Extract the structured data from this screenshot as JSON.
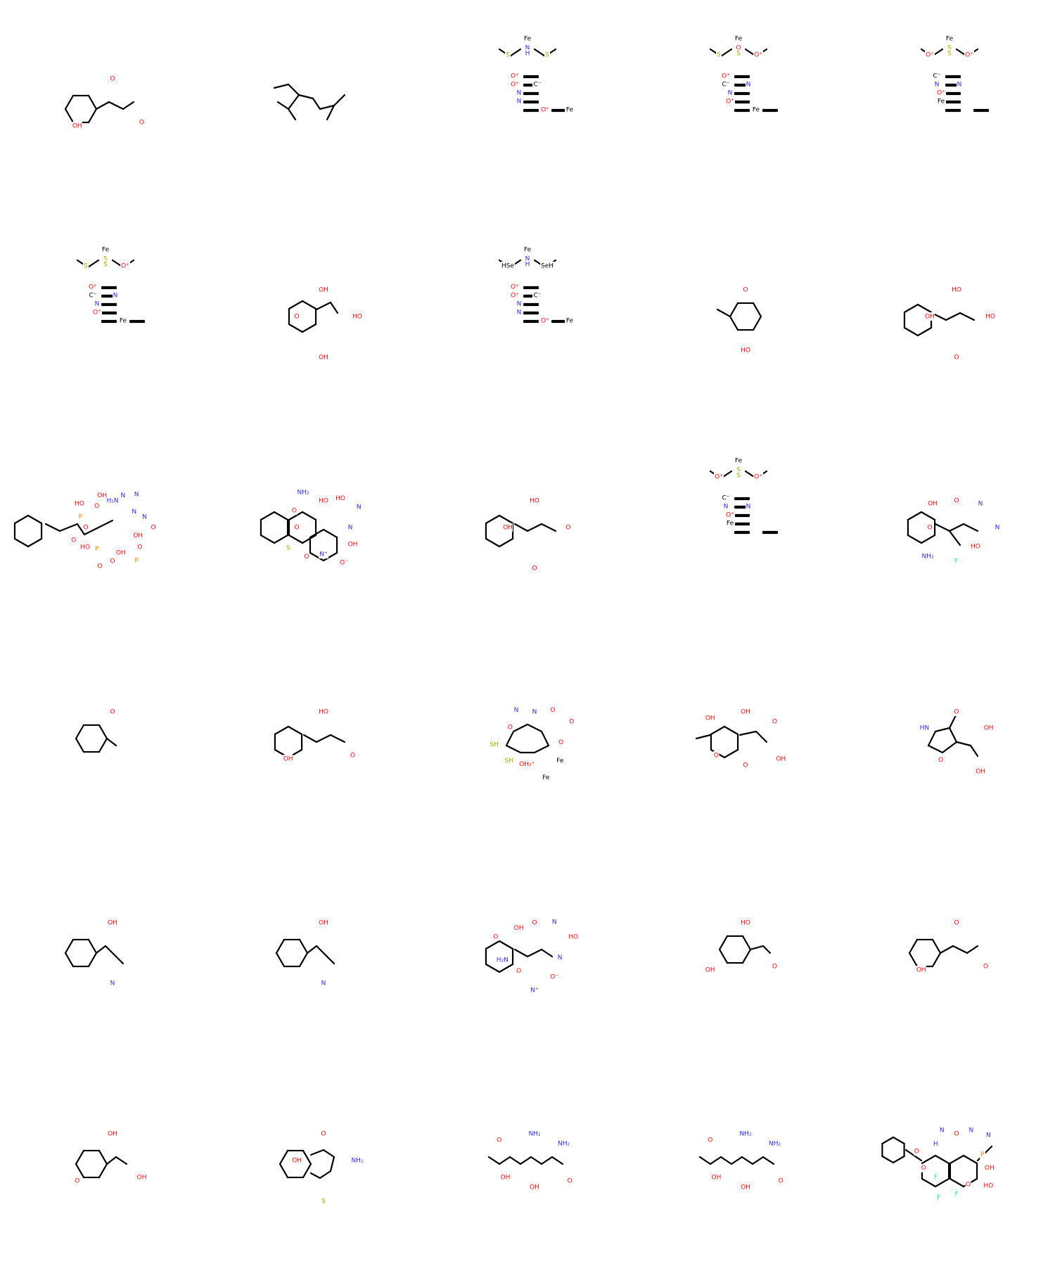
{
  "colors": {
    "carbon": "#000000",
    "oxygen": "#ff0d0d",
    "nitrogen": "#2a2afa",
    "sulfur": "#b2a200",
    "phosphorus": "#ff8000",
    "fluorine": "#21d4d4",
    "iron": "#000000",
    "background": "#ffffff"
  },
  "molecules": [
    {
      "name": "phenylglyoxylic-acid",
      "labels": [
        {
          "t": "O",
          "c": "O"
        },
        {
          "t": "O",
          "c": "O"
        },
        {
          "t": "OH",
          "c": "O"
        }
      ]
    },
    {
      "name": "branched-alkane",
      "labels": []
    },
    {
      "name": "fe-hydrogenase-cluster-nh",
      "labels": [
        {
          "t": "Fe",
          "c": "Fe"
        },
        {
          "t": "N",
          "c": "N"
        },
        {
          "t": "H",
          "c": "N"
        },
        {
          "t": "S",
          "c": "S"
        },
        {
          "t": "S",
          "c": "S"
        },
        {
          "t": "O⁺",
          "c": "O"
        },
        {
          "t": "O⁺",
          "c": "O"
        },
        {
          "t": "C⁻",
          "c": "C"
        },
        {
          "t": "N",
          "c": "N"
        },
        {
          "t": "N",
          "c": "N"
        },
        {
          "t": "O⁺",
          "c": "O"
        },
        {
          "t": "Fe",
          "c": "Fe"
        }
      ]
    },
    {
      "name": "fe-hydrogenase-cluster-o",
      "labels": [
        {
          "t": "Fe",
          "c": "Fe"
        },
        {
          "t": "O",
          "c": "O"
        },
        {
          "t": "S",
          "c": "S"
        },
        {
          "t": "S",
          "c": "S"
        },
        {
          "t": "O⁺",
          "c": "O"
        },
        {
          "t": "O⁺",
          "c": "O"
        },
        {
          "t": "C⁻",
          "c": "C"
        },
        {
          "t": "N",
          "c": "N"
        },
        {
          "t": "N",
          "c": "N"
        },
        {
          "t": "O⁺",
          "c": "O"
        },
        {
          "t": "Fe",
          "c": "Fe"
        }
      ]
    },
    {
      "name": "fe-hydrogenase-cluster-c",
      "labels": [
        {
          "t": "Fe",
          "c": "Fe"
        },
        {
          "t": "S",
          "c": "S"
        },
        {
          "t": "S",
          "c": "S"
        },
        {
          "t": "O⁺",
          "c": "O"
        },
        {
          "t": "O⁺",
          "c": "O"
        },
        {
          "t": "C⁻",
          "c": "C"
        },
        {
          "t": "N",
          "c": "N"
        },
        {
          "t": "N",
          "c": "N"
        },
        {
          "t": "O⁺",
          "c": "O"
        },
        {
          "t": "Fe",
          "c": "Fe"
        }
      ]
    },
    {
      "name": "fe-hydrogenase-cluster-s",
      "labels": [
        {
          "t": "Fe",
          "c": "Fe"
        },
        {
          "t": "S",
          "c": "S"
        },
        {
          "t": "S",
          "c": "S"
        },
        {
          "t": "S",
          "c": "S"
        },
        {
          "t": "O⁺",
          "c": "O"
        },
        {
          "t": "O⁺",
          "c": "O"
        },
        {
          "t": "C⁻",
          "c": "C"
        },
        {
          "t": "N",
          "c": "N"
        },
        {
          "t": "N",
          "c": "N"
        },
        {
          "t": "O⁺",
          "c": "O"
        },
        {
          "t": "Fe",
          "c": "Fe"
        }
      ]
    },
    {
      "name": "trihydroxyacetophenone",
      "labels": [
        {
          "t": "OH",
          "c": "O"
        },
        {
          "t": "HO",
          "c": "O"
        },
        {
          "t": "OH",
          "c": "O"
        },
        {
          "t": "O",
          "c": "O"
        }
      ]
    },
    {
      "name": "fe-hydrogenase-cluster-se",
      "labels": [
        {
          "t": "Fe",
          "c": "Fe"
        },
        {
          "t": "N",
          "c": "N"
        },
        {
          "t": "H",
          "c": "N"
        },
        {
          "t": "HSe",
          "c": "C"
        },
        {
          "t": "SeH",
          "c": "C"
        },
        {
          "t": "O⁺",
          "c": "O"
        },
        {
          "t": "O⁺",
          "c": "O"
        },
        {
          "t": "C⁻",
          "c": "C"
        },
        {
          "t": "N",
          "c": "N"
        },
        {
          "t": "N",
          "c": "N"
        },
        {
          "t": "O⁺",
          "c": "O"
        },
        {
          "t": "Fe",
          "c": "Fe"
        }
      ]
    },
    {
      "name": "benzoic-acid",
      "labels": [
        {
          "t": "O",
          "c": "O"
        },
        {
          "t": "HO",
          "c": "O"
        }
      ]
    },
    {
      "name": "caffeic-acid",
      "labels": [
        {
          "t": "HO",
          "c": "O"
        },
        {
          "t": "HO",
          "c": "O"
        },
        {
          "t": "O",
          "c": "O"
        },
        {
          "t": "OH",
          "c": "O"
        }
      ]
    },
    {
      "name": "deoxyadenosine-triphosphate",
      "labels": [
        {
          "t": "H₂N",
          "c": "N"
        },
        {
          "t": "N",
          "c": "N"
        },
        {
          "t": "N",
          "c": "N"
        },
        {
          "t": "N",
          "c": "N"
        },
        {
          "t": "N",
          "c": "N"
        },
        {
          "t": "O",
          "c": "O"
        },
        {
          "t": "OH",
          "c": "O"
        },
        {
          "t": "O",
          "c": "O"
        },
        {
          "t": "P",
          "c": "P"
        },
        {
          "t": "OH",
          "c": "O"
        },
        {
          "t": "O",
          "c": "O"
        },
        {
          "t": "O",
          "c": "O"
        },
        {
          "t": "P",
          "c": "P"
        },
        {
          "t": "HO",
          "c": "O"
        },
        {
          "t": "O",
          "c": "O"
        },
        {
          "t": "O",
          "c": "O"
        },
        {
          "t": "P",
          "c": "P"
        },
        {
          "t": "HO",
          "c": "O"
        },
        {
          "t": "O",
          "c": "O"
        },
        {
          "t": "OH",
          "c": "O"
        }
      ]
    },
    {
      "name": "nitro-benzoquinoxaline-sulfonamide",
      "labels": [
        {
          "t": "HO",
          "c": "O"
        },
        {
          "t": "HO",
          "c": "O"
        },
        {
          "t": "N",
          "c": "N"
        },
        {
          "t": "N",
          "c": "N"
        },
        {
          "t": "OH",
          "c": "O"
        },
        {
          "t": "O⁻",
          "c": "O"
        },
        {
          "t": "N⁺",
          "c": "N"
        },
        {
          "t": "O",
          "c": "O"
        },
        {
          "t": "S",
          "c": "S"
        },
        {
          "t": "O",
          "c": "O"
        },
        {
          "t": "O",
          "c": "O"
        },
        {
          "t": "NH₂",
          "c": "N"
        }
      ]
    },
    {
      "name": "hydroxyphenylpyruvic-acid",
      "labels": [
        {
          "t": "HO",
          "c": "O"
        },
        {
          "t": "O",
          "c": "O"
        },
        {
          "t": "O",
          "c": "O"
        },
        {
          "t": "OH",
          "c": "O"
        }
      ]
    },
    {
      "name": "fe-hydrogenase-cluster-ethane",
      "labels": [
        {
          "t": "Fe",
          "c": "Fe"
        },
        {
          "t": "S",
          "c": "S"
        },
        {
          "t": "S",
          "c": "S"
        },
        {
          "t": "O⁺",
          "c": "O"
        },
        {
          "t": "O⁺",
          "c": "O"
        },
        {
          "t": "C⁻",
          "c": "C"
        },
        {
          "t": "N",
          "c": "N"
        },
        {
          "t": "N",
          "c": "N"
        },
        {
          "t": "O⁺",
          "c": "O"
        },
        {
          "t": "Fe",
          "c": "Fe"
        }
      ]
    },
    {
      "name": "fluoro-willardiine",
      "labels": [
        {
          "t": "O",
          "c": "O"
        },
        {
          "t": "N",
          "c": "N"
        },
        {
          "t": "N",
          "c": "N"
        },
        {
          "t": "HO",
          "c": "O"
        },
        {
          "t": "F",
          "c": "F"
        },
        {
          "t": "NH₂",
          "c": "N"
        },
        {
          "t": "O",
          "c": "O"
        },
        {
          "t": "OH",
          "c": "O"
        }
      ]
    },
    {
      "name": "benzaldehyde",
      "labels": [
        {
          "t": "O",
          "c": "O"
        }
      ]
    },
    {
      "name": "coumaric-acid",
      "labels": [
        {
          "t": "HO",
          "c": "O"
        },
        {
          "t": "O",
          "c": "O"
        },
        {
          "t": "OH",
          "c": "O"
        }
      ]
    },
    {
      "name": "diiron-hydrogenase-complex",
      "labels": [
        {
          "t": "N",
          "c": "N"
        },
        {
          "t": "O",
          "c": "O"
        },
        {
          "t": "O",
          "c": "O"
        },
        {
          "t": "O",
          "c": "O"
        },
        {
          "t": "Fe",
          "c": "Fe"
        },
        {
          "t": "Fe",
          "c": "Fe"
        },
        {
          "t": "OH₂⁺",
          "c": "O"
        },
        {
          "t": "SH",
          "c": "S"
        },
        {
          "t": "SH",
          "c": "S"
        },
        {
          "t": "O",
          "c": "O"
        },
        {
          "t": "N",
          "c": "N"
        }
      ]
    },
    {
      "name": "isochorismic-acid",
      "labels": [
        {
          "t": "OH",
          "c": "O"
        },
        {
          "t": "O",
          "c": "O"
        },
        {
          "t": "OH",
          "c": "O"
        },
        {
          "t": "O",
          "c": "O"
        },
        {
          "t": "O",
          "c": "O"
        },
        {
          "t": "OH",
          "c": "O"
        }
      ]
    },
    {
      "name": "kainic-acid",
      "labels": [
        {
          "t": "O",
          "c": "O"
        },
        {
          "t": "OH",
          "c": "O"
        },
        {
          "t": "OH",
          "c": "O"
        },
        {
          "t": "O",
          "c": "O"
        },
        {
          "t": "HN",
          "c": "N"
        }
      ]
    },
    {
      "name": "mandelonitrile-a",
      "labels": [
        {
          "t": "OH",
          "c": "O"
        },
        {
          "t": "N",
          "c": "N"
        }
      ]
    },
    {
      "name": "mandelonitrile-b",
      "labels": [
        {
          "t": "OH",
          "c": "O"
        },
        {
          "t": "N",
          "c": "N"
        }
      ]
    },
    {
      "name": "nitro-willardiine",
      "labels": [
        {
          "t": "O",
          "c": "O"
        },
        {
          "t": "N",
          "c": "N"
        },
        {
          "t": "HO",
          "c": "O"
        },
        {
          "t": "N",
          "c": "N"
        },
        {
          "t": "O⁻",
          "c": "O"
        },
        {
          "t": "N⁺",
          "c": "N"
        },
        {
          "t": "O",
          "c": "O"
        },
        {
          "t": "H₂N",
          "c": "N"
        },
        {
          "t": "O",
          "c": "O"
        },
        {
          "t": "OH",
          "c": "O"
        }
      ]
    },
    {
      "name": "hydroxybenzoic-acid",
      "labels": [
        {
          "t": "HO",
          "c": "O"
        },
        {
          "t": "O",
          "c": "O"
        },
        {
          "t": "OH",
          "c": "O"
        }
      ]
    },
    {
      "name": "phenylpyruvic-acid",
      "labels": [
        {
          "t": "O",
          "c": "O"
        },
        {
          "t": "O",
          "c": "O"
        },
        {
          "t": "OH",
          "c": "O"
        }
      ]
    },
    {
      "name": "salicylic-acid",
      "labels": [
        {
          "t": "OH",
          "c": "O"
        },
        {
          "t": "OH",
          "c": "O"
        },
        {
          "t": "O",
          "c": "O"
        }
      ]
    },
    {
      "name": "benzoxathiine-amine",
      "labels": [
        {
          "t": "O",
          "c": "O"
        },
        {
          "t": "NH₂",
          "c": "N"
        },
        {
          "t": "S",
          "c": "S"
        },
        {
          "t": "OH",
          "c": "O"
        }
      ]
    },
    {
      "name": "methyl-diaminopimelic-acid-a",
      "labels": [
        {
          "t": "NH₂",
          "c": "N"
        },
        {
          "t": "NH₂",
          "c": "N"
        },
        {
          "t": "O",
          "c": "O"
        },
        {
          "t": "OH",
          "c": "O"
        },
        {
          "t": "OH",
          "c": "O"
        },
        {
          "t": "O",
          "c": "O"
        }
      ]
    },
    {
      "name": "methyl-diaminopimelic-acid-b",
      "labels": [
        {
          "t": "NH₂",
          "c": "N"
        },
        {
          "t": "NH₂",
          "c": "N"
        },
        {
          "t": "O",
          "c": "O"
        },
        {
          "t": "OH",
          "c": "O"
        },
        {
          "t": "OH",
          "c": "O"
        },
        {
          "t": "O",
          "c": "O"
        }
      ]
    },
    {
      "name": "morpholino-quinoxalinedione-phosphonate",
      "labels": [
        {
          "t": "O",
          "c": "O"
        },
        {
          "t": "N",
          "c": "N"
        },
        {
          "t": "N",
          "c": "N"
        },
        {
          "t": "P",
          "c": "P"
        },
        {
          "t": "OH",
          "c": "O"
        },
        {
          "t": "HO",
          "c": "O"
        },
        {
          "t": "O",
          "c": "O"
        },
        {
          "t": "F",
          "c": "F"
        },
        {
          "t": "F",
          "c": "F"
        },
        {
          "t": "F",
          "c": "F"
        },
        {
          "t": "O",
          "c": "O"
        },
        {
          "t": "O",
          "c": "O"
        },
        {
          "t": "H",
          "c": "N"
        },
        {
          "t": "N",
          "c": "N"
        }
      ]
    }
  ]
}
